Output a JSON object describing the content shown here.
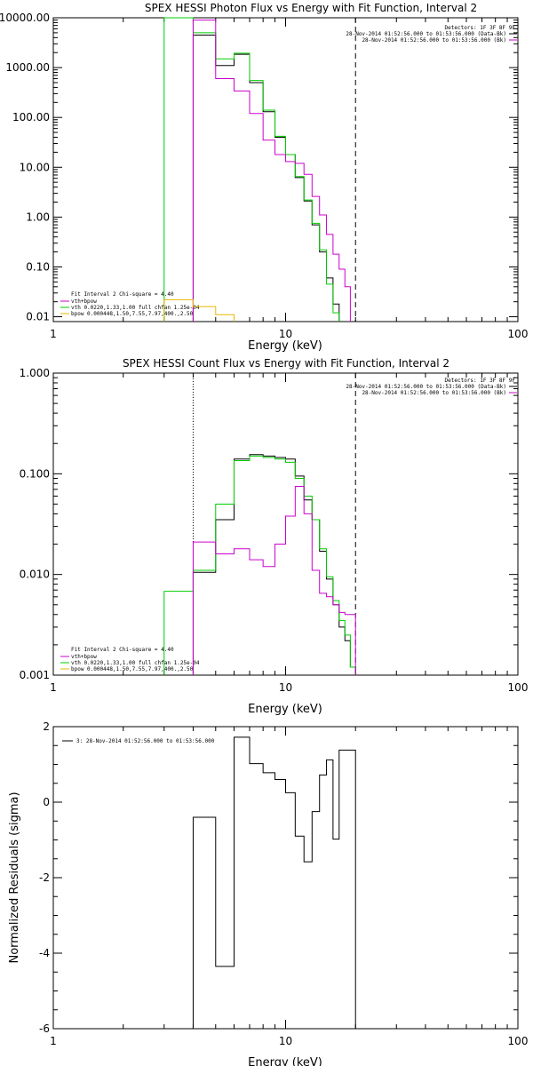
{
  "colors": {
    "data": "#000000",
    "total_fit": "#cc00cc",
    "vth": "#00cc00",
    "bpow": "#e6b800",
    "energy_marker": "#000000"
  },
  "chart_data": [
    {
      "type": "line",
      "title": "SPEX HESSI Photon Flux vs Energy with Fit Function, Interval 2",
      "xlabel": "Energy (keV)",
      "ylabel": "",
      "xscale": "log",
      "yscale": "log",
      "xlim": [
        1,
        100
      ],
      "ylim": [
        0.008,
        10000
      ],
      "xticks": [
        1,
        10,
        100
      ],
      "xtick_labels": [
        "1",
        "10",
        "100"
      ],
      "yticks": [
        0.01,
        0.1,
        1,
        10,
        100,
        1000,
        10000
      ],
      "ytick_labels": [
        "0.01",
        "0.10",
        "1.00",
        "10.00",
        "100.00",
        "1000.00",
        "10000.00"
      ],
      "legend_top_right": [
        "Detectors: 1F 3F 8F 9F",
        "28-Nov-2014 01:52:56.000 to 01:53:56.000 (Data-Bk)",
        "28-Nov-2014 01:52:56.000 to 01:53:56.000 (Bk)"
      ],
      "legend_bottom_left": [
        "Fit Interval  2   Chi-square = 4.40",
        "vth+bpow",
        "vth 0.0220,1.33,1.00  full chfan 1.25e-04",
        "bpow 0.000448,1.50,7.55,7.97,400.,2.50"
      ],
      "marker_lines": [
        {
          "x": 4.0,
          "style": "dotted",
          "color_key": "total_fit"
        },
        {
          "x": 20.0,
          "style": "dashed",
          "color_key": "energy_marker"
        }
      ],
      "series": [
        {
          "color_key": "data",
          "edges": [
            4,
            5,
            6,
            7,
            8,
            9,
            10,
            11,
            12,
            13,
            14,
            15,
            16,
            17,
            18,
            19,
            20
          ],
          "values": [
            4500,
            1100,
            1850,
            500,
            130,
            40,
            18,
            6.2,
            2.1,
            0.7,
            0.2,
            0.06,
            0.018,
            null,
            null,
            null
          ]
        },
        {
          "color_key": "vth",
          "edges": [
            3,
            4,
            5,
            6,
            7,
            8,
            9,
            10,
            11,
            12,
            13,
            14,
            15,
            16,
            17,
            18,
            19,
            20
          ],
          "values": [
            10000,
            5000,
            1500,
            1950,
            550,
            140,
            42,
            18,
            6.5,
            2.2,
            0.75,
            0.22,
            0.045,
            0.012,
            null,
            null,
            null
          ]
        },
        {
          "color_key": "total_fit",
          "edges": [
            4,
            5,
            6,
            7,
            8,
            9,
            10,
            11,
            12,
            13,
            14,
            15,
            16,
            17,
            18,
            19,
            20
          ],
          "values": [
            9000,
            600,
            340,
            120,
            35,
            18,
            13,
            12,
            7.2,
            2.6,
            1.1,
            0.45,
            0.18,
            0.09,
            0.04,
            null
          ]
        },
        {
          "color_key": "bpow",
          "edges": [
            3,
            4,
            5,
            6
          ],
          "values": [
            0.022,
            0.016,
            0.011
          ]
        }
      ]
    },
    {
      "type": "line",
      "title": "SPEX HESSI Count Flux vs Energy with Fit Function, Interval 2",
      "xlabel": "Energy (keV)",
      "ylabel": "",
      "xscale": "log",
      "yscale": "log",
      "xlim": [
        1,
        100
      ],
      "ylim": [
        0.001,
        1
      ],
      "xticks": [
        1,
        10,
        100
      ],
      "xtick_labels": [
        "1",
        "10",
        "100"
      ],
      "yticks": [
        0.001,
        0.01,
        0.1,
        1
      ],
      "ytick_labels": [
        "0.001",
        "0.010",
        "0.100",
        "1.000"
      ],
      "legend_top_right": [
        "Detectors: 1F 3F 8F 9F",
        "28-Nov-2014 01:52:56.000 to 01:53:56.000 (Data-Bk)",
        "28-Nov-2014 01:52:56.000 to 01:53:56.000 (Bk)"
      ],
      "legend_bottom_left": [
        "Fit Interval  2   Chi-square = 4.40",
        "vth+bpow",
        "vth 0.0220,1.33,1.00  full chfan 1.25e-04",
        "bpow 0.000448,1.50,7.55,7.97,400.,2.50"
      ],
      "marker_lines": [
        {
          "x": 4.0,
          "style": "dotted",
          "color_key": "data"
        },
        {
          "x": 20.0,
          "style": "dashed",
          "color_key": "energy_marker"
        }
      ],
      "series": [
        {
          "color_key": "data",
          "edges": [
            4,
            5,
            6,
            7,
            8,
            9,
            10,
            11,
            12,
            13,
            14,
            15,
            16,
            17,
            18,
            19,
            20
          ],
          "values": [
            0.0105,
            0.035,
            0.14,
            0.155,
            0.15,
            0.145,
            0.14,
            0.095,
            0.055,
            0.035,
            0.017,
            0.009,
            0.005,
            0.003,
            0.0022,
            0.0012
          ]
        },
        {
          "color_key": "vth",
          "edges": [
            3,
            4,
            5,
            6,
            7,
            8,
            9,
            10,
            11,
            12,
            13,
            14,
            15,
            16,
            17,
            18,
            19,
            20
          ],
          "values": [
            0.0068,
            0.011,
            0.05,
            0.135,
            0.15,
            0.145,
            0.14,
            0.13,
            0.09,
            0.06,
            0.035,
            0.018,
            0.0095,
            0.0055,
            0.0035,
            0.0025,
            0.0012
          ]
        },
        {
          "color_key": "total_fit",
          "edges": [
            4,
            5,
            6,
            7,
            8,
            9,
            10,
            11,
            12,
            13,
            14,
            15,
            16,
            17,
            18,
            19,
            20
          ],
          "values": [
            0.021,
            0.016,
            0.018,
            0.014,
            0.012,
            0.02,
            0.038,
            0.075,
            0.04,
            0.011,
            0.0065,
            0.006,
            0.005,
            0.0042,
            0.004,
            0.004
          ]
        }
      ]
    },
    {
      "type": "line",
      "title": "",
      "xlabel": "Energy (keV)",
      "ylabel": "Normalized Residuals (sigma)",
      "xscale": "log",
      "yscale": "linear",
      "xlim": [
        1,
        100
      ],
      "ylim": [
        -6,
        2
      ],
      "xticks": [
        1,
        10,
        100
      ],
      "xtick_labels": [
        "1",
        "10",
        "100"
      ],
      "yticks": [
        -6,
        -4,
        -2,
        0,
        2
      ],
      "ytick_labels": [
        "-6",
        "-4",
        "-2",
        "0",
        "2"
      ],
      "legend_top_left": [
        "3: 28-Nov-2014 01:52:56.000 to 01:53:56.000"
      ],
      "series": [
        {
          "color_key": "data",
          "edges": [
            4,
            5,
            6,
            7,
            8,
            9,
            10,
            11,
            12,
            13,
            14,
            15,
            16,
            17,
            18,
            19,
            20
          ],
          "values": [
            -0.4,
            -4.35,
            1.72,
            1.02,
            0.78,
            0.6,
            0.25,
            -0.9,
            -1.58,
            -0.25,
            0.72,
            1.12,
            -0.98,
            1.38,
            1.38,
            1.38
          ]
        }
      ]
    }
  ]
}
